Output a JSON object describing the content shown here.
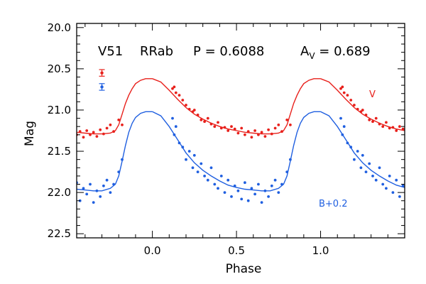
{
  "chart_data": {
    "type": "scatter",
    "header": {
      "star": "V51",
      "star_type": "RRab",
      "period_label": "P = 0.6088",
      "amp_label": "A",
      "amp_sub": "V",
      "amp_value": " = 0.689"
    },
    "xlabel": "Phase",
    "ylabel": "Mag",
    "xlim": [
      -0.45,
      1.5
    ],
    "ylim": [
      22.55,
      19.95
    ],
    "y_inverted": true,
    "x_ticks": [
      0.0,
      0.5,
      1.0
    ],
    "x_tick_labels": [
      "0.0",
      "0.5",
      "1.0"
    ],
    "x_minor_step": 0.1,
    "y_ticks": [
      20.0,
      20.5,
      21.0,
      21.5,
      22.0,
      22.5
    ],
    "y_tick_labels": [
      "20.0",
      "20.5",
      "21.0",
      "21.5",
      "22.0",
      "22.5"
    ],
    "y_minor_step": 0.1,
    "grid": false,
    "period_repeat": 1.0,
    "series": [
      {
        "name": "V",
        "color": "#e8201b",
        "offset_label": "V",
        "curve_phase": [
          0.0,
          0.05,
          0.1,
          0.15,
          0.2,
          0.25,
          0.3,
          0.35,
          0.4,
          0.45,
          0.5,
          0.55,
          0.6,
          0.65,
          0.7,
          0.75,
          0.78,
          0.8,
          0.82,
          0.84,
          0.86,
          0.88,
          0.9,
          0.93,
          0.96,
          1.0
        ],
        "curve_mag": [
          20.62,
          20.66,
          20.76,
          20.87,
          20.97,
          21.05,
          21.11,
          21.16,
          21.2,
          21.23,
          21.25,
          21.27,
          21.28,
          21.29,
          21.29,
          21.28,
          21.25,
          21.18,
          21.05,
          20.92,
          20.82,
          20.74,
          20.68,
          20.64,
          20.62,
          20.62
        ],
        "points_phase": [
          0.12,
          0.13,
          0.14,
          0.16,
          0.18,
          0.2,
          0.22,
          0.24,
          0.25,
          0.27,
          0.29,
          0.31,
          0.33,
          0.35,
          0.37,
          0.39,
          0.41,
          0.43,
          0.45,
          0.47,
          0.49,
          0.51,
          0.53,
          0.55,
          0.57,
          0.59,
          0.61,
          0.63,
          0.65,
          0.67,
          0.69,
          0.71,
          0.73,
          0.75,
          0.77,
          0.8,
          0.82
        ],
        "points_mag": [
          20.74,
          20.72,
          20.79,
          20.82,
          20.88,
          20.94,
          20.99,
          21.02,
          21.0,
          21.06,
          21.12,
          21.14,
          21.1,
          21.17,
          21.2,
          21.15,
          21.22,
          21.21,
          21.25,
          21.2,
          21.23,
          21.28,
          21.22,
          21.3,
          21.26,
          21.33,
          21.25,
          21.3,
          21.27,
          21.32,
          21.24,
          21.29,
          21.22,
          21.18,
          21.26,
          21.12,
          21.18
        ],
        "errorbar_mag": 20.55,
        "errorbar_half": 0.04
      },
      {
        "name": "B+0.2",
        "color": "#1f5fe0",
        "offset_label": "B+0.2",
        "curve_phase": [
          0.0,
          0.05,
          0.1,
          0.15,
          0.2,
          0.25,
          0.3,
          0.35,
          0.4,
          0.45,
          0.5,
          0.55,
          0.6,
          0.65,
          0.7,
          0.75,
          0.78,
          0.8,
          0.82,
          0.84,
          0.86,
          0.88,
          0.9,
          0.93,
          0.96,
          1.0
        ],
        "curve_mag": [
          21.02,
          21.07,
          21.2,
          21.36,
          21.52,
          21.64,
          21.73,
          21.8,
          21.86,
          21.91,
          21.94,
          21.96,
          21.97,
          21.98,
          21.98,
          21.95,
          21.9,
          21.8,
          21.62,
          21.43,
          21.27,
          21.16,
          21.09,
          21.04,
          21.02,
          21.02
        ],
        "points_phase": [
          0.12,
          0.13,
          0.14,
          0.16,
          0.18,
          0.2,
          0.22,
          0.24,
          0.25,
          0.27,
          0.29,
          0.31,
          0.33,
          0.35,
          0.37,
          0.39,
          0.41,
          0.43,
          0.45,
          0.47,
          0.49,
          0.51,
          0.53,
          0.55,
          0.57,
          0.59,
          0.61,
          0.63,
          0.65,
          0.67,
          0.69,
          0.71,
          0.73,
          0.75,
          0.77,
          0.8,
          0.82
        ],
        "points_mag": [
          21.1,
          21.3,
          21.2,
          21.4,
          21.45,
          21.6,
          21.5,
          21.7,
          21.55,
          21.75,
          21.65,
          21.8,
          21.85,
          21.7,
          21.9,
          21.95,
          21.8,
          22.0,
          21.85,
          22.05,
          21.92,
          21.98,
          22.08,
          21.88,
          22.1,
          21.95,
          22.02,
          21.9,
          22.12,
          21.98,
          22.05,
          21.92,
          21.85,
          22.0,
          21.9,
          21.75,
          21.6
        ],
        "errorbar_mag": 20.72,
        "errorbar_half": 0.04
      }
    ]
  }
}
